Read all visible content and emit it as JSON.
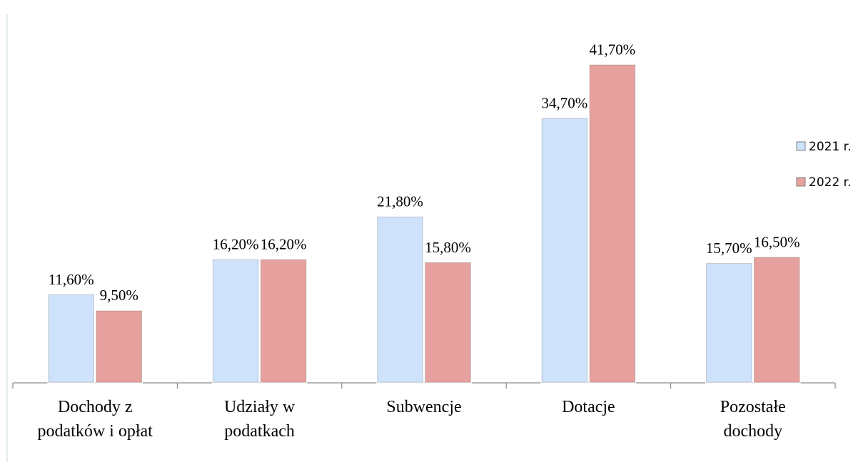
{
  "chart_data": {
    "type": "bar",
    "categories": [
      "Dochody z\npodatków i opłat",
      "Udziały w\npodatkach",
      "Subwencje",
      "Dotacje",
      "Pozostałe\ndochody"
    ],
    "series": [
      {
        "name": "2021 r.",
        "color": "#cfe2fb",
        "values": [
          11.6,
          16.2,
          21.8,
          34.7,
          15.7
        ],
        "value_labels": [
          "11,60%",
          "16,20%",
          "21,80%",
          "34,70%",
          "15,70%"
        ]
      },
      {
        "name": "2022 r.",
        "color": "#e6a19f",
        "values": [
          9.5,
          16.2,
          15.8,
          41.7,
          16.5
        ],
        "value_labels": [
          "9,50%",
          "16,20%",
          "15,80%",
          "41,70%",
          "16,50%"
        ]
      }
    ],
    "ylim": [
      0,
      45
    ],
    "legend": "right"
  }
}
